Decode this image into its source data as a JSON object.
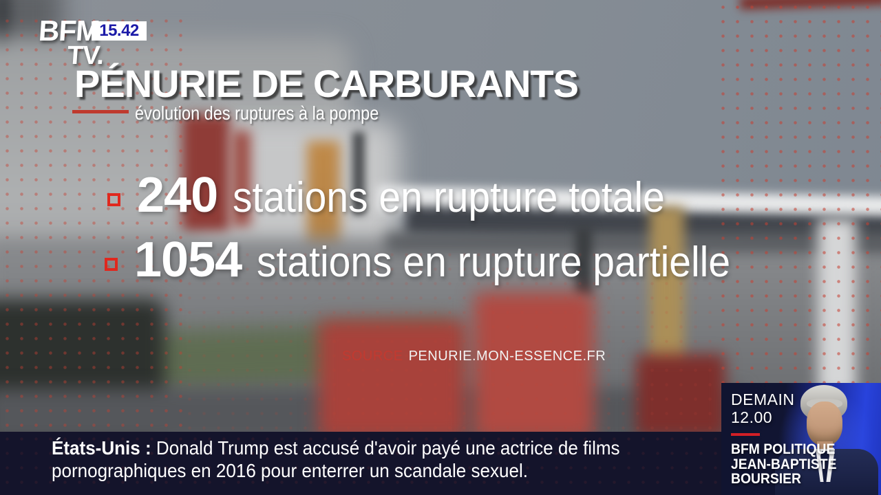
{
  "channel": {
    "name_line1": "BFM",
    "name_line2": "TV.",
    "time": "15.42"
  },
  "headline": {
    "title": "PÉNURIE DE CARBURANTS",
    "subtitle": "évolution des ruptures à la pompe"
  },
  "stats": [
    {
      "value": "240",
      "label": "stations en rupture totale"
    },
    {
      "value": "1054",
      "label": "stations en rupture partielle"
    }
  ],
  "source": {
    "label": "SOURCE",
    "site": "PENURIE.MON-ESSENCE.FR"
  },
  "ticker": {
    "tag": "États-Unis :",
    "line1": "Donald Trump est accusé d'avoir payé une actrice de films",
    "line2": "pornographiques en 2016 pour enterrer un scandale sexuel."
  },
  "promo": {
    "day": "DEMAIN",
    "time": "12.00",
    "show": "BFM POLITIQUE",
    "guest_line1": "JEAN-BAPTISTE",
    "guest_line2": "BOURSIER"
  },
  "colors": {
    "accent_red": "#d21f26",
    "time_blue": "#1c1ba8",
    "bullet_red": "#e0281e",
    "ticker_bg": "#14142b"
  }
}
